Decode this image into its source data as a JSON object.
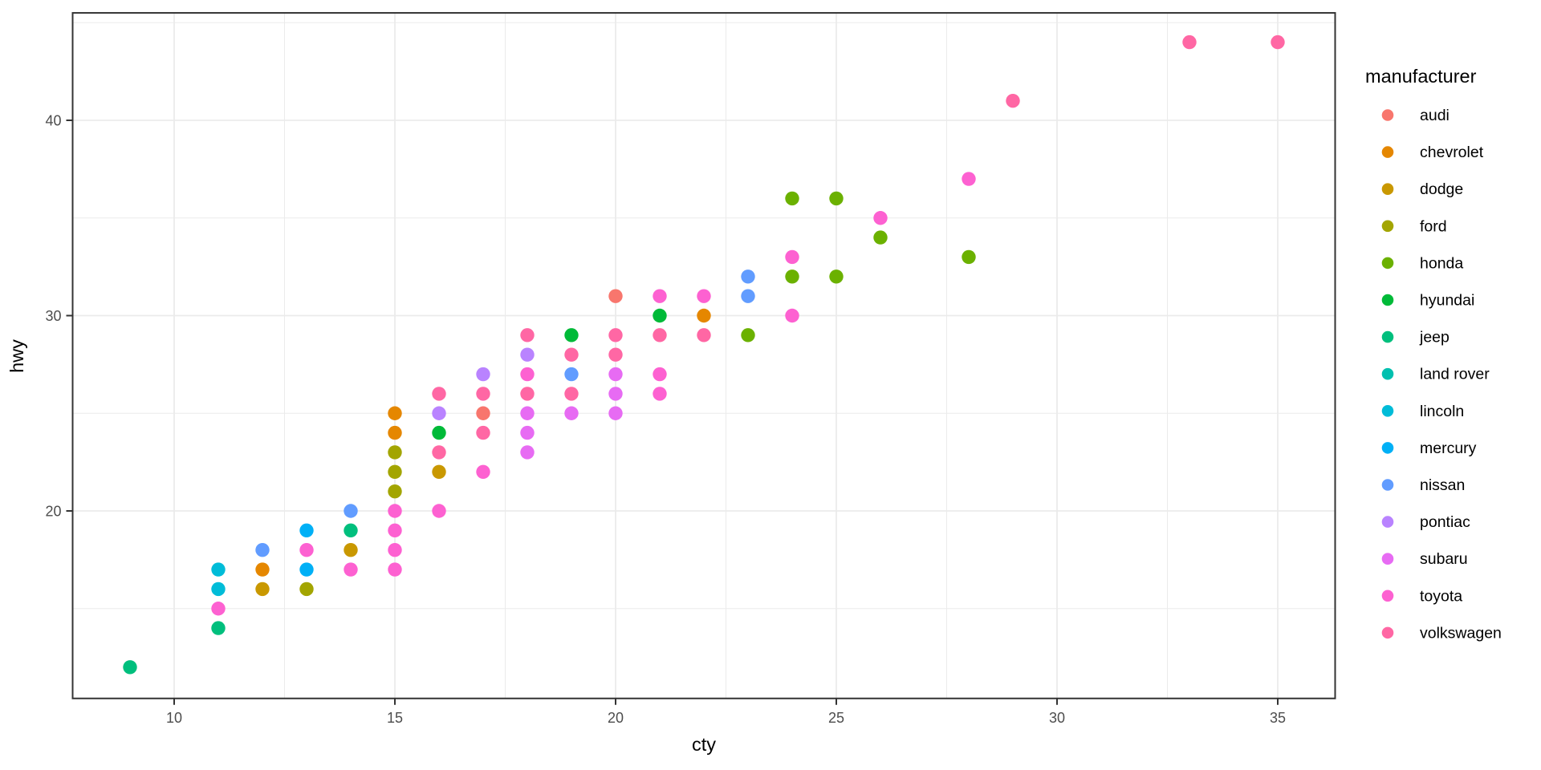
{
  "figure": {
    "background": "#FFFFFF",
    "panel_background": "#FFFFFF",
    "panel_border_color": "#333333",
    "grid_color": "#EBEBEB",
    "tick_color": "#333333",
    "tick_label_color": "#4D4D4D",
    "axis_title_color": "#000000",
    "legend_text_color": "#000000"
  },
  "chart_data": {
    "type": "scatter",
    "title": "",
    "xlabel": "cty",
    "ylabel": "hwy",
    "legend_title": "manufacturer",
    "legend_position": "right",
    "grid": true,
    "xlim": [
      7.7,
      36.3
    ],
    "ylim": [
      10.4,
      45.5
    ],
    "x_ticks": [
      10,
      15,
      20,
      25,
      30,
      35
    ],
    "y_ticks": [
      20,
      30,
      40
    ],
    "x_minor": [
      12.5,
      17.5,
      22.5,
      27.5,
      32.5
    ],
    "y_minor": [
      15,
      25,
      35,
      45
    ],
    "series": [
      {
        "name": "audi",
        "color": "#F8766D",
        "points": [
          [
            17,
            25
          ],
          [
            20,
            31
          ]
        ]
      },
      {
        "name": "chevrolet",
        "color": "#E58700",
        "points": [
          [
            12,
            17
          ],
          [
            15,
            24
          ],
          [
            15,
            25
          ],
          [
            22,
            30
          ]
        ]
      },
      {
        "name": "dodge",
        "color": "#C99800",
        "points": [
          [
            12,
            16
          ],
          [
            14,
            18
          ],
          [
            16,
            22
          ]
        ]
      },
      {
        "name": "ford",
        "color": "#A3A500",
        "points": [
          [
            13,
            16
          ],
          [
            15,
            21
          ],
          [
            15,
            22
          ],
          [
            15,
            23
          ]
        ]
      },
      {
        "name": "honda",
        "color": "#6BB100",
        "points": [
          [
            23,
            29
          ],
          [
            24,
            32
          ],
          [
            24,
            36
          ],
          [
            25,
            32
          ],
          [
            25,
            36
          ],
          [
            26,
            34
          ],
          [
            28,
            33
          ]
        ]
      },
      {
        "name": "hyundai",
        "color": "#00BA38",
        "points": [
          [
            16,
            24
          ],
          [
            19,
            29
          ],
          [
            21,
            30
          ]
        ]
      },
      {
        "name": "jeep",
        "color": "#00BF7D",
        "points": [
          [
            9,
            12
          ],
          [
            11,
            14
          ],
          [
            14,
            19
          ]
        ]
      },
      {
        "name": "land rover",
        "color": "#00C0AF",
        "points": []
      },
      {
        "name": "lincoln",
        "color": "#00BCD8",
        "points": [
          [
            11,
            16
          ],
          [
            11,
            17
          ]
        ]
      },
      {
        "name": "mercury",
        "color": "#00B0F6",
        "points": [
          [
            13,
            17
          ],
          [
            13,
            19
          ]
        ]
      },
      {
        "name": "nissan",
        "color": "#619CFF",
        "points": [
          [
            12,
            18
          ],
          [
            14,
            20
          ],
          [
            19,
            27
          ],
          [
            23,
            31
          ],
          [
            23,
            32
          ]
        ]
      },
      {
        "name": "pontiac",
        "color": "#B983FF",
        "points": [
          [
            16,
            25
          ],
          [
            17,
            27
          ],
          [
            18,
            28
          ]
        ]
      },
      {
        "name": "subaru",
        "color": "#E76BF3",
        "points": [
          [
            18,
            23
          ],
          [
            18,
            24
          ],
          [
            18,
            25
          ],
          [
            19,
            25
          ],
          [
            20,
            25
          ],
          [
            20,
            26
          ],
          [
            20,
            27
          ]
        ]
      },
      {
        "name": "toyota",
        "color": "#FD61D1",
        "points": [
          [
            11,
            15
          ],
          [
            13,
            18
          ],
          [
            14,
            17
          ],
          [
            15,
            17
          ],
          [
            15,
            18
          ],
          [
            15,
            19
          ],
          [
            15,
            20
          ],
          [
            16,
            20
          ],
          [
            17,
            22
          ],
          [
            18,
            27
          ],
          [
            21,
            26
          ],
          [
            21,
            27
          ],
          [
            21,
            31
          ],
          [
            22,
            31
          ],
          [
            24,
            30
          ],
          [
            24,
            33
          ],
          [
            26,
            35
          ],
          [
            28,
            37
          ]
        ]
      },
      {
        "name": "volkswagen",
        "color": "#FF67A4",
        "points": [
          [
            16,
            23
          ],
          [
            16,
            26
          ],
          [
            17,
            24
          ],
          [
            17,
            26
          ],
          [
            18,
            26
          ],
          [
            18,
            29
          ],
          [
            19,
            26
          ],
          [
            19,
            28
          ],
          [
            20,
            28
          ],
          [
            20,
            29
          ],
          [
            21,
            29
          ],
          [
            22,
            29
          ],
          [
            29,
            41
          ],
          [
            33,
            44
          ],
          [
            35,
            44
          ]
        ]
      }
    ]
  }
}
